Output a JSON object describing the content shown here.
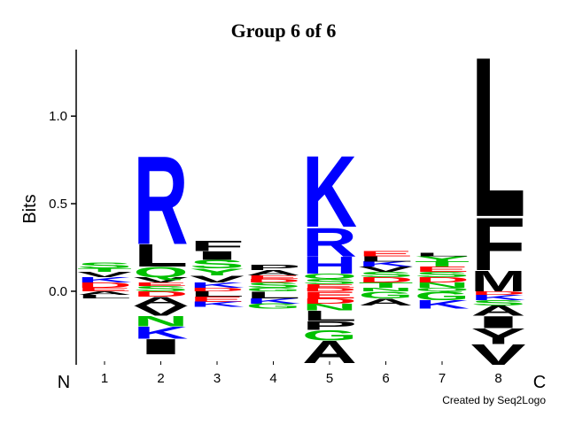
{
  "chart_data": {
    "type": "logo",
    "title": "Group 6 of 6",
    "ylabel": "Bits",
    "start_label": "N",
    "end_label": "C",
    "credit": "Created by Seq2Logo",
    "ylim": [
      -0.42,
      1.38
    ],
    "yticks": [
      {
        "value": 0,
        "label": "0.0"
      },
      {
        "value": 0.5,
        "label": "0.5"
      },
      {
        "value": 1,
        "label": "1.0"
      }
    ],
    "categories": [
      "1",
      "2",
      "3",
      "4",
      "5",
      "6",
      "7",
      "8"
    ],
    "stacks": [
      [
        {
          "letter": "E",
          "value": 0.02,
          "color": "#ff0000"
        },
        {
          "letter": "D",
          "value": 0.03,
          "color": "#ff0000"
        },
        {
          "letter": "K",
          "value": 0.03,
          "color": "#0000ff"
        },
        {
          "letter": "V",
          "value": 0.03,
          "color": "#000000"
        },
        {
          "letter": "T",
          "value": 0.02,
          "color": "#00c000"
        },
        {
          "letter": "S",
          "value": 0.035,
          "color": "#00c000"
        },
        {
          "letter": "A",
          "value": -0.02,
          "color": "#000000"
        },
        {
          "letter": "L",
          "value": -0.02,
          "color": "#000000"
        }
      ],
      [
        {
          "letter": "S",
          "value": 0.03,
          "color": "#00c000"
        },
        {
          "letter": "E",
          "value": 0.02,
          "color": "#ff0000"
        },
        {
          "letter": "V",
          "value": 0.03,
          "color": "#000000"
        },
        {
          "letter": "Q",
          "value": 0.06,
          "color": "#00c000"
        },
        {
          "letter": "L",
          "value": 0.13,
          "color": "#000000"
        },
        {
          "letter": "R",
          "value": 0.52,
          "color": "#0000ff"
        },
        {
          "letter": "D",
          "value": -0.03,
          "color": "#ff0000"
        },
        {
          "letter": "A",
          "value": -0.05,
          "color": "#000000"
        },
        {
          "letter": "V",
          "value": -0.06,
          "color": "#000000"
        },
        {
          "letter": "N",
          "value": -0.06,
          "color": "#00c000"
        },
        {
          "letter": "K",
          "value": -0.07,
          "color": "#0000ff"
        },
        {
          "letter": "I",
          "value": -0.09,
          "color": "#000000"
        }
      ],
      [
        {
          "letter": "D",
          "value": 0.02,
          "color": "#ff0000"
        },
        {
          "letter": "K",
          "value": 0.03,
          "color": "#0000ff"
        },
        {
          "letter": "V",
          "value": 0.04,
          "color": "#000000"
        },
        {
          "letter": "Y",
          "value": 0.04,
          "color": "#00c000"
        },
        {
          "letter": "S",
          "value": 0.05,
          "color": "#00c000"
        },
        {
          "letter": "I",
          "value": 0.05,
          "color": "#000000"
        },
        {
          "letter": "F",
          "value": 0.06,
          "color": "#000000"
        },
        {
          "letter": "L",
          "value": -0.03,
          "color": "#000000"
        },
        {
          "letter": "E",
          "value": -0.03,
          "color": "#ff0000"
        },
        {
          "letter": "K",
          "value": -0.03,
          "color": "#0000ff"
        }
      ],
      [
        {
          "letter": "G",
          "value": 0.02,
          "color": "#00c000"
        },
        {
          "letter": "S",
          "value": 0.03,
          "color": "#00c000"
        },
        {
          "letter": "D",
          "value": 0.02,
          "color": "#ff0000"
        },
        {
          "letter": "E",
          "value": 0.02,
          "color": "#ff0000"
        },
        {
          "letter": "A",
          "value": 0.03,
          "color": "#000000"
        },
        {
          "letter": "P",
          "value": 0.03,
          "color": "#000000"
        },
        {
          "letter": "L",
          "value": -0.04,
          "color": "#000000"
        },
        {
          "letter": "K",
          "value": -0.03,
          "color": "#0000ff"
        },
        {
          "letter": "G",
          "value": -0.03,
          "color": "#00c000"
        }
      ],
      [
        {
          "letter": "D",
          "value": 0.02,
          "color": "#ff0000"
        },
        {
          "letter": "E",
          "value": 0.02,
          "color": "#ff0000"
        },
        {
          "letter": "S",
          "value": 0.03,
          "color": "#00c000"
        },
        {
          "letter": "Q",
          "value": 0.03,
          "color": "#00c000"
        },
        {
          "letter": "H",
          "value": 0.1,
          "color": "#0000ff"
        },
        {
          "letter": "R",
          "value": 0.17,
          "color": "#0000ff"
        },
        {
          "letter": "K",
          "value": 0.42,
          "color": "#0000ff"
        },
        {
          "letter": "E",
          "value": -0.04,
          "color": "#ff0000"
        },
        {
          "letter": "D",
          "value": -0.03,
          "color": "#ff0000"
        },
        {
          "letter": "N",
          "value": -0.04,
          "color": "#00c000"
        },
        {
          "letter": "L",
          "value": -0.06,
          "color": "#000000"
        },
        {
          "letter": "P",
          "value": -0.05,
          "color": "#000000"
        },
        {
          "letter": "G",
          "value": -0.06,
          "color": "#00c000"
        },
        {
          "letter": "A",
          "value": -0.13,
          "color": "#000000"
        }
      ],
      [
        {
          "letter": "N",
          "value": 0.02,
          "color": "#00c000"
        },
        {
          "letter": "T",
          "value": 0.03,
          "color": "#00c000"
        },
        {
          "letter": "D",
          "value": 0.03,
          "color": "#ff0000"
        },
        {
          "letter": "S",
          "value": 0.03,
          "color": "#00c000"
        },
        {
          "letter": "V",
          "value": 0.03,
          "color": "#000000"
        },
        {
          "letter": "K",
          "value": 0.03,
          "color": "#0000ff"
        },
        {
          "letter": "L",
          "value": 0.03,
          "color": "#000000"
        },
        {
          "letter": "E",
          "value": 0.03,
          "color": "#ff0000"
        },
        {
          "letter": "G",
          "value": -0.04,
          "color": "#00c000"
        },
        {
          "letter": "A",
          "value": -0.04,
          "color": "#000000"
        }
      ],
      [
        {
          "letter": "Q",
          "value": 0.02,
          "color": "#00c000"
        },
        {
          "letter": "N",
          "value": 0.03,
          "color": "#00c000"
        },
        {
          "letter": "D",
          "value": 0.03,
          "color": "#ff0000"
        },
        {
          "letter": "S",
          "value": 0.03,
          "color": "#00c000"
        },
        {
          "letter": "E",
          "value": 0.03,
          "color": "#ff0000"
        },
        {
          "letter": "T",
          "value": 0.03,
          "color": "#00c000"
        },
        {
          "letter": "Y",
          "value": 0.03,
          "color": "#00c000"
        },
        {
          "letter": "L",
          "value": 0.02,
          "color": "#000000"
        },
        {
          "letter": "G",
          "value": -0.05,
          "color": "#00c000"
        },
        {
          "letter": "K",
          "value": -0.05,
          "color": "#0000ff"
        }
      ],
      [
        {
          "letter": "M",
          "value": 0.12,
          "color": "#000000"
        },
        {
          "letter": "F",
          "value": 0.31,
          "color": "#000000"
        },
        {
          "letter": "L",
          "value": 0.94,
          "color": "#000000"
        },
        {
          "letter": "D",
          "value": -0.02,
          "color": "#ff0000"
        },
        {
          "letter": "K",
          "value": -0.03,
          "color": "#0000ff"
        },
        {
          "letter": "S",
          "value": -0.03,
          "color": "#00c000"
        },
        {
          "letter": "A",
          "value": -0.06,
          "color": "#000000"
        },
        {
          "letter": "I",
          "value": -0.07,
          "color": "#000000"
        },
        {
          "letter": "Y",
          "value": -0.09,
          "color": "#000000"
        },
        {
          "letter": "V",
          "value": -0.12,
          "color": "#000000"
        }
      ]
    ]
  }
}
